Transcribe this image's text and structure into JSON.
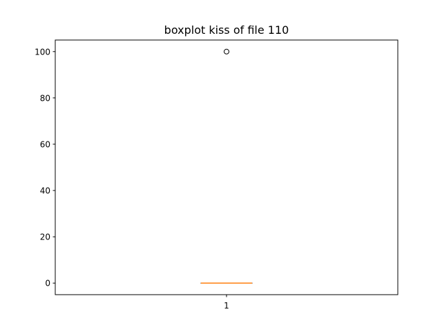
{
  "chart_data": {
    "type": "boxplot",
    "title": "boxplot kiss of file 110",
    "xlabel": "",
    "ylabel": "",
    "categories": [
      "1"
    ],
    "ylim": [
      -5,
      105
    ],
    "yticks": [
      0,
      20,
      40,
      60,
      80,
      100
    ],
    "xlim": [
      0.5,
      1.5
    ],
    "grid": false,
    "boxes": [
      {
        "position": 1,
        "whislo": 0,
        "q1": 0,
        "median": 0,
        "q3": 0,
        "whishi": 0,
        "fliers": [
          100
        ]
      }
    ],
    "colors": {
      "box": "#000000",
      "median": "#ff7f0e",
      "flier": "#000000"
    }
  }
}
